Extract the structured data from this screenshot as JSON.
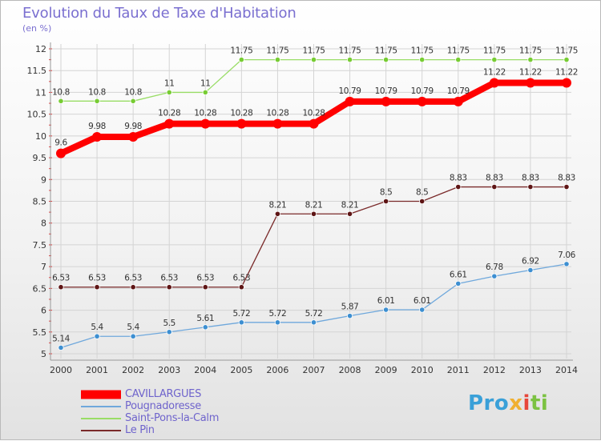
{
  "chart_data": {
    "type": "line",
    "title": "Evolution du Taux de Taxe d'Habitation",
    "subtitle": "(en %)",
    "xlabel": "",
    "ylabel": "",
    "x": [
      2000,
      2001,
      2002,
      2003,
      2004,
      2005,
      2006,
      2007,
      2008,
      2009,
      2010,
      2011,
      2012,
      2013,
      2014
    ],
    "x_tick_labels": [
      "2000",
      "2001",
      "2002",
      "2003",
      "2004",
      "2005",
      "2006",
      "2007",
      "2008",
      "2009",
      "2010",
      "2011",
      "2012",
      "2013",
      "2014"
    ],
    "ylim": [
      5,
      12
    ],
    "y_ticks": [
      5,
      5.5,
      6,
      6.5,
      7,
      7.5,
      8,
      8.5,
      9,
      9.5,
      10,
      10.5,
      11,
      11.5,
      12
    ],
    "y_tick_labels": [
      "5",
      "5.5",
      "6",
      "6.5",
      "7",
      "7.5",
      "8",
      "8.5",
      "9",
      "9.5",
      "10",
      "10.5",
      "11",
      "11.5",
      "12"
    ],
    "grid": true,
    "legend_position": "bottom-left",
    "series": [
      {
        "name": "CAVILLARGUES",
        "color": "#ff0000",
        "emphasis": true,
        "values": [
          9.6,
          9.98,
          9.98,
          10.28,
          10.28,
          10.28,
          10.28,
          10.28,
          10.79,
          10.79,
          10.79,
          10.79,
          11.22,
          11.22,
          11.22
        ],
        "labels": [
          "9.6",
          "9.98",
          "9.98",
          "10.28",
          "10.28",
          "10.28",
          "10.28",
          "10.28",
          "10.79",
          "10.79",
          "10.79",
          "10.79",
          "11.22",
          "11.22",
          "11.22"
        ]
      },
      {
        "name": "Pougnadoresse",
        "color": "#6fa8dc",
        "marker_color": "#3d8fd1",
        "values": [
          5.14,
          5.4,
          5.4,
          5.5,
          5.61,
          5.72,
          5.72,
          5.72,
          5.87,
          6.01,
          6.01,
          6.61,
          6.78,
          6.92,
          7.06
        ],
        "labels": [
          "5.14",
          "5.4",
          "5.4",
          "5.5",
          "5.61",
          "5.72",
          "5.72",
          "5.72",
          "5.87",
          "6.01",
          "6.01",
          "6.61",
          "6.78",
          "6.92",
          "7.06"
        ]
      },
      {
        "name": "Saint-Pons-la-Calm",
        "color": "#99dd66",
        "marker_color": "#77cc33",
        "values": [
          10.8,
          10.8,
          10.8,
          11,
          11,
          11.75,
          11.75,
          11.75,
          11.75,
          11.75,
          11.75,
          11.75,
          11.75,
          11.75,
          11.75
        ],
        "labels": [
          "10.8",
          "10.8",
          "10.8",
          "11",
          "11",
          "11.75",
          "11.75",
          "11.75",
          "11.75",
          "11.75",
          "11.75",
          "11.75",
          "11.75",
          "11.75",
          "11.75"
        ]
      },
      {
        "name": "Le Pin",
        "color": "#7a2a2a",
        "marker_color": "#5e1515",
        "values": [
          6.53,
          6.53,
          6.53,
          6.53,
          6.53,
          6.53,
          8.21,
          8.21,
          8.21,
          8.5,
          8.5,
          8.83,
          8.83,
          8.83,
          8.83
        ],
        "labels": [
          "6.53",
          "6.53",
          "6.53",
          "6.53",
          "6.53",
          "6.53",
          "8.21",
          "8.21",
          "8.21",
          "8.5",
          "8.5",
          "8.83",
          "8.83",
          "8.83",
          "8.83"
        ]
      }
    ]
  },
  "logo": {
    "p1": "Pro",
    "p2": "x",
    "p3": "i",
    "p4": "ti"
  }
}
